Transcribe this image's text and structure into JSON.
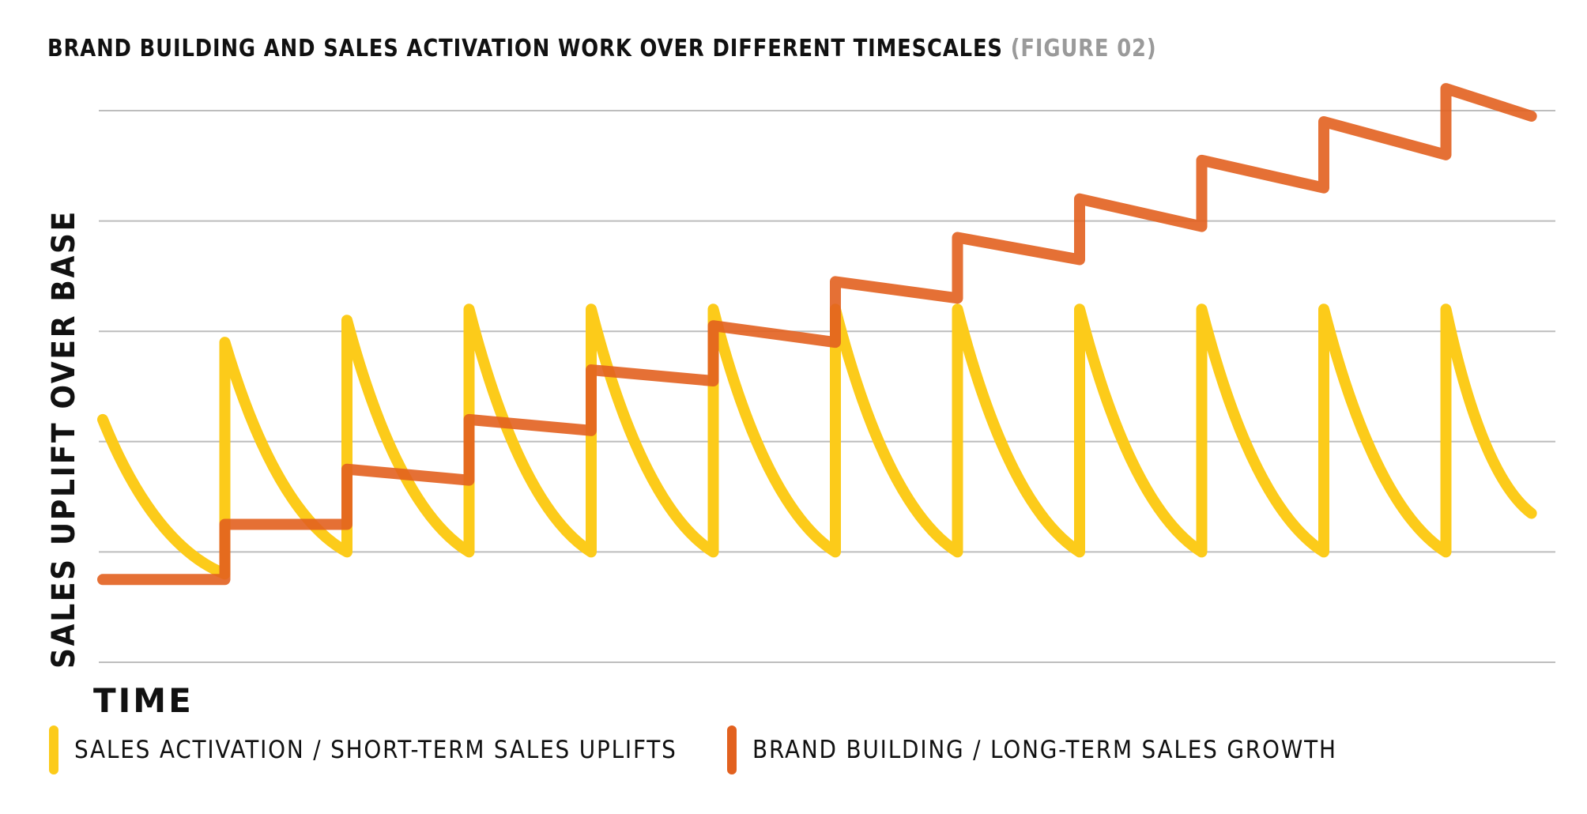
{
  "title": {
    "main": "BRAND BUILDING AND SALES ACTIVATION WORK OVER DIFFERENT TIMESCALES",
    "figure": "(FIGURE 02)"
  },
  "colors": {
    "activation": "#FCCB1A",
    "brand": "#E2611F",
    "grid": "#BDBDBD",
    "text": "#111111"
  },
  "chart_data": {
    "type": "line",
    "title": "BRAND BUILDING AND SALES ACTIVATION WORK OVER DIFFERENT TIMESCALES (FIGURE 02)",
    "xlabel": "TIME",
    "ylabel": "SALES UPLIFT OVER BASE",
    "xlim": [
      0,
      11.7
    ],
    "ylim": [
      0,
      5
    ],
    "gridlines_y": [
      0,
      1,
      2,
      3,
      4,
      5
    ],
    "x_tick_labels": false,
    "y_tick_labels": false,
    "legend": "bottom",
    "series": [
      {
        "name": "SALES ACTIVATION / SHORT-TERM SALES UPLIFTS",
        "color": "#FCCB1A",
        "style": "sawtooth",
        "points": [
          [
            0.0,
            2.2
          ],
          [
            1.0,
            0.8
          ],
          [
            1.0,
            2.9
          ],
          [
            2.0,
            1.0
          ],
          [
            2.0,
            3.1
          ],
          [
            3.0,
            1.0
          ],
          [
            3.0,
            3.2
          ],
          [
            4.0,
            1.0
          ],
          [
            4.0,
            3.2
          ],
          [
            5.0,
            1.0
          ],
          [
            5.0,
            3.2
          ],
          [
            6.0,
            1.0
          ],
          [
            6.0,
            3.2
          ],
          [
            7.0,
            1.0
          ],
          [
            7.0,
            3.2
          ],
          [
            8.0,
            1.0
          ],
          [
            8.0,
            3.2
          ],
          [
            9.0,
            1.0
          ],
          [
            9.0,
            3.2
          ],
          [
            10.0,
            1.0
          ],
          [
            10.0,
            3.2
          ],
          [
            11.0,
            1.0
          ],
          [
            11.0,
            3.2
          ],
          [
            11.7,
            1.35
          ]
        ]
      },
      {
        "name": "BRAND BUILDING / LONG-TERM SALES GROWTH",
        "color": "#E2611F",
        "style": "stepped",
        "points": [
          [
            0.0,
            0.75
          ],
          [
            1.0,
            0.75
          ],
          [
            1.0,
            1.25
          ],
          [
            2.0,
            1.25
          ],
          [
            2.0,
            1.75
          ],
          [
            3.0,
            1.65
          ],
          [
            3.0,
            2.2
          ],
          [
            4.0,
            2.1
          ],
          [
            4.0,
            2.65
          ],
          [
            5.0,
            2.55
          ],
          [
            5.0,
            3.05
          ],
          [
            6.0,
            2.9
          ],
          [
            6.0,
            3.45
          ],
          [
            7.0,
            3.3
          ],
          [
            7.0,
            3.85
          ],
          [
            8.0,
            3.65
          ],
          [
            8.0,
            4.2
          ],
          [
            9.0,
            3.95
          ],
          [
            9.0,
            4.55
          ],
          [
            10.0,
            4.3
          ],
          [
            10.0,
            4.9
          ],
          [
            11.0,
            4.6
          ],
          [
            11.0,
            5.2
          ],
          [
            11.7,
            4.95
          ]
        ]
      }
    ]
  },
  "legend": {
    "activation": "SALES ACTIVATION / SHORT-TERM SALES UPLIFTS",
    "brand": "BRAND BUILDING / LONG-TERM SALES GROWTH"
  }
}
